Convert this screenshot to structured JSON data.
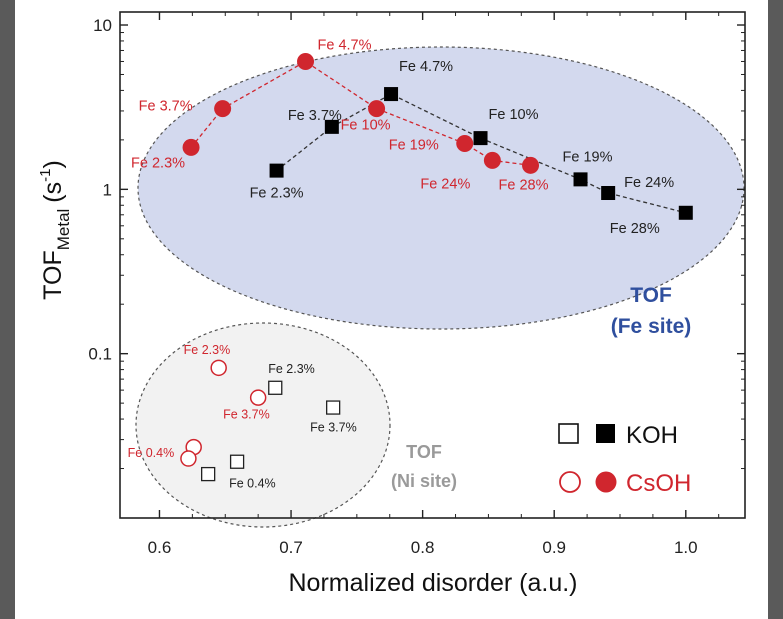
{
  "chart_data": {
    "type": "scatter",
    "title": "",
    "xlabel": "Normalized disorder (a.u.)",
    "ylabel_main": "TOF",
    "ylabel_sub": "Metal",
    "ylabel_unit_open": "(s",
    "ylabel_unit_exp": "-1",
    "ylabel_unit_close": ")",
    "xlim": [
      0.57,
      1.045
    ],
    "ylim": [
      0.01,
      12
    ],
    "yscale": "log",
    "x_ticks": [
      {
        "value": 0.6,
        "label": "0.6"
      },
      {
        "value": 0.7,
        "label": "0.7"
      },
      {
        "value": 0.8,
        "label": "0.8"
      },
      {
        "value": 0.9,
        "label": "0.9"
      },
      {
        "value": 1.0,
        "label": "1.0"
      }
    ],
    "y_ticks": [
      {
        "value": 10,
        "label": "10"
      },
      {
        "value": 1,
        "label": "1"
      },
      {
        "value": 0.1,
        "label": "0.1"
      }
    ],
    "series": [
      {
        "name": "KOH Fe site",
        "marker": "filled-square",
        "color": "#000000",
        "connected": true,
        "points": [
          {
            "x": 0.689,
            "y": 1.3,
            "label": "Fe 2.3%"
          },
          {
            "x": 0.731,
            "y": 2.4,
            "label": "Fe 3.7%"
          },
          {
            "x": 0.776,
            "y": 3.8,
            "label": "Fe 4.7%"
          },
          {
            "x": 0.844,
            "y": 2.05,
            "label": "Fe 10%"
          },
          {
            "x": 0.92,
            "y": 1.15,
            "label": "Fe 19%"
          },
          {
            "x": 0.941,
            "y": 0.95,
            "label": "Fe 24%"
          },
          {
            "x": 1.0,
            "y": 0.72,
            "label": "Fe 28%"
          }
        ]
      },
      {
        "name": "CsOH Fe site",
        "marker": "filled-circle",
        "color": "#d0262e",
        "connected": true,
        "points": [
          {
            "x": 0.624,
            "y": 1.8,
            "label": "Fe 2.3%"
          },
          {
            "x": 0.648,
            "y": 3.1,
            "label": "Fe 3.7%"
          },
          {
            "x": 0.711,
            "y": 6.0,
            "label": "Fe 4.7%"
          },
          {
            "x": 0.765,
            "y": 3.1,
            "label": "Fe 10%"
          },
          {
            "x": 0.832,
            "y": 1.9,
            "label": "Fe 19%"
          },
          {
            "x": 0.853,
            "y": 1.5,
            "label": "Fe 24%"
          },
          {
            "x": 0.882,
            "y": 1.4,
            "label": "Fe 28%"
          }
        ]
      },
      {
        "name": "KOH Ni site",
        "marker": "open-square",
        "color": "#000000",
        "connected": false,
        "points": [
          {
            "x": 0.688,
            "y": 0.062,
            "label": "Fe 2.3%"
          },
          {
            "x": 0.732,
            "y": 0.047,
            "label": "Fe 3.7%"
          },
          {
            "x": 0.659,
            "y": 0.022,
            "label": "Fe 0.4%"
          },
          {
            "x": 0.637,
            "y": 0.0185,
            "label": ""
          }
        ]
      },
      {
        "name": "CsOH Ni site",
        "marker": "open-circle",
        "color": "#d0262e",
        "connected": false,
        "points": [
          {
            "x": 0.645,
            "y": 0.082,
            "label": "Fe 2.3%"
          },
          {
            "x": 0.675,
            "y": 0.054,
            "label": "Fe 3.7%"
          },
          {
            "x": 0.626,
            "y": 0.027,
            "label": "Fe 0.4%"
          },
          {
            "x": 0.622,
            "y": 0.023,
            "label": ""
          }
        ]
      }
    ],
    "regions": [
      {
        "name": "fe-site",
        "label_line1": "TOF",
        "label_line2": "(Fe site)"
      },
      {
        "name": "ni-site",
        "label_line1": "TOF",
        "label_line2": "(Ni site)"
      }
    ],
    "legend": {
      "placement": "bottom-right",
      "entries": [
        {
          "label": "KOH",
          "color": "#000000"
        },
        {
          "label": "CsOH",
          "color": "#d0262e"
        }
      ]
    },
    "colors": {
      "koh": "#000000",
      "csoh": "#d0262e",
      "fe_region": "#d3d9ee",
      "ni_region": "#f2f2f2",
      "fe_text": "#2f4f9e",
      "ni_text": "#9a9a9a"
    }
  }
}
